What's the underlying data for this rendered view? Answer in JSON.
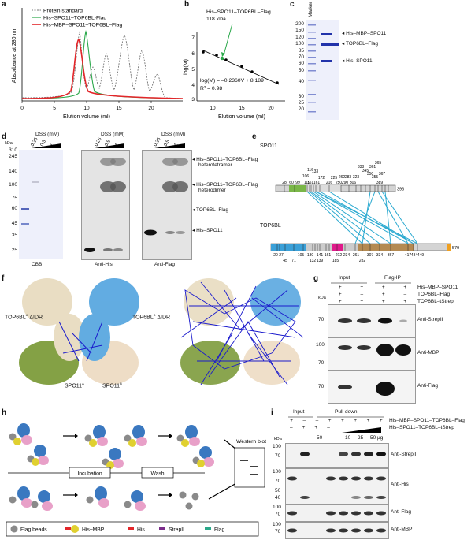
{
  "panel_labels": {
    "a": "a",
    "b": "b",
    "c": "c",
    "d": "d",
    "e": "e",
    "f": "f",
    "g": "g",
    "h": "h",
    "i": "i"
  },
  "panel_a": {
    "legend": [
      "Protein standard",
      "His–SPO11–TOP6BL-Flag",
      "His–MBP–SPO11–TOP6BL–Flag"
    ],
    "ylabel": "Absorbance at 280 nm",
    "xlabel": "Elution volume (ml)",
    "xticks": [
      "0",
      "5",
      "10",
      "15",
      "20"
    ],
    "colors": {
      "standard": "#777777",
      "his": "#2aa84a",
      "mbp": "#e3262a"
    }
  },
  "panel_b": {
    "annot_line1": "His–SPO11–TOP6BL–Flag",
    "annot_line2": "118 kDa",
    "eq1": "log(M) = –0.2360V + 8.189",
    "eq2": "R² = 0.98",
    "ylabel": "log(M)",
    "xlabel": "Elution volume (ml)",
    "yticks": [
      "7",
      "6",
      "5",
      "4",
      "3"
    ],
    "xticks": [
      "10",
      "15",
      "20"
    ]
  },
  "panel_c": {
    "marker": "Marker",
    "mw": [
      "200",
      "150",
      "120",
      "100",
      "85",
      "70",
      "60",
      "50",
      "40",
      "30",
      "25",
      "20"
    ],
    "bands": [
      "His–MBP–SPO11",
      "TOP6BL–Flag",
      "His–SPO11"
    ]
  },
  "panel_d": {
    "dss": "DSS (mM)",
    "conc": [
      "0.25",
      "0.5",
      "1"
    ],
    "mw": [
      "kDa",
      "310",
      "245",
      "140",
      "100",
      "75",
      "60",
      "45",
      "35",
      "25"
    ],
    "captions": [
      "CBB",
      "Anti-His",
      "Anti-Flag"
    ],
    "bands": [
      "His–SPO11–TOP6BL–Flag",
      "heterotetramer",
      "His–SPO11–TOP6BL–Flag",
      "heterodimer",
      "TOP6BL–Flag",
      "His–SPO11"
    ]
  },
  "panel_e": {
    "spo11": "SPO11",
    "top6bl": "TOP6BL",
    "spo11_end": "396",
    "top6bl_end": "579",
    "spo11_sites": [
      "28",
      "60",
      "99",
      "106",
      "110",
      "119",
      "133",
      "151",
      "161",
      "172",
      "216",
      "225",
      "250",
      "262",
      "283",
      "290",
      "306",
      "323",
      "338",
      "345",
      "350",
      "355",
      "361",
      "365",
      "367",
      "389"
    ],
    "top6bl_sites": [
      "20",
      "27",
      "45",
      "71",
      "105",
      "130",
      "132",
      "139",
      "141",
      "161",
      "185",
      "212",
      "234",
      "261",
      "282",
      "307",
      "334",
      "367",
      "417",
      "434",
      "449"
    ]
  },
  "panel_f": {
    "labels": [
      "TOP6BL",
      "A",
      "ΔIDR",
      "TOP6BL",
      "B",
      "ΔIDR",
      "SPO11",
      "A",
      "SPO11",
      "B"
    ]
  },
  "panel_g": {
    "header_input": "Input",
    "header_ip": "Flag-IP",
    "rows": [
      {
        "label": "His–MBP–SPO11",
        "signs": [
          "+",
          "+",
          "+",
          "+"
        ]
      },
      {
        "label": "TOP6BL–Flag",
        "signs": [
          "+",
          "–",
          "+",
          "–"
        ]
      },
      {
        "label": "TOP6BL–tStrep",
        "signs": [
          "+",
          "+",
          "+",
          "+"
        ]
      }
    ],
    "kda": "kDa",
    "blots": [
      {
        "label": "Anti-StrepII",
        "mw": "70"
      },
      {
        "label": "Anti-MBP",
        "mw": "100",
        "mw2": "70"
      },
      {
        "label": "Anti-Flag",
        "mw": "70"
      }
    ]
  },
  "panel_h": {
    "steps": [
      "Incubation",
      "Wash"
    ],
    "result": "Western blot",
    "legend": [
      "Flag beads",
      "His–MBP",
      "His",
      "StrepII",
      "Flag"
    ],
    "colors": {
      "his": "#e3262a",
      "strep": "#7b2d8b",
      "flag": "#2aa88a",
      "mbp": "#d4c22a",
      "spo11": "#e8a0c8",
      "top6bl": "#3a78c0"
    }
  },
  "panel_i": {
    "header_input": "Input",
    "header_pd": "Pull-down",
    "rows": [
      {
        "label": "His–MBP–SPO11–TOP6BL–Flag",
        "signs": [
          "+",
          "–",
          "–",
          "+",
          "+",
          "+",
          "+",
          "+"
        ]
      },
      {
        "label": "His–SPO11–TOP6BL–tStrep",
        "signs": [
          "–",
          "+",
          "+",
          "–",
          "",
          "",
          "",
          ""
        ]
      }
    ],
    "amounts": [
      "50",
      "10",
      "25",
      "50 µg"
    ],
    "kda": "kDa",
    "blots": [
      {
        "label": "Anti-StrepII",
        "mw": [
          "100",
          "70"
        ]
      },
      {
        "label": "Anti-His",
        "mw": [
          "100",
          "70",
          "50",
          "40"
        ]
      },
      {
        "label": "Anti-Flag",
        "mw": [
          "100",
          "70"
        ]
      },
      {
        "label": "Anti-MBP",
        "mw": [
          "100",
          "70"
        ]
      }
    ]
  }
}
